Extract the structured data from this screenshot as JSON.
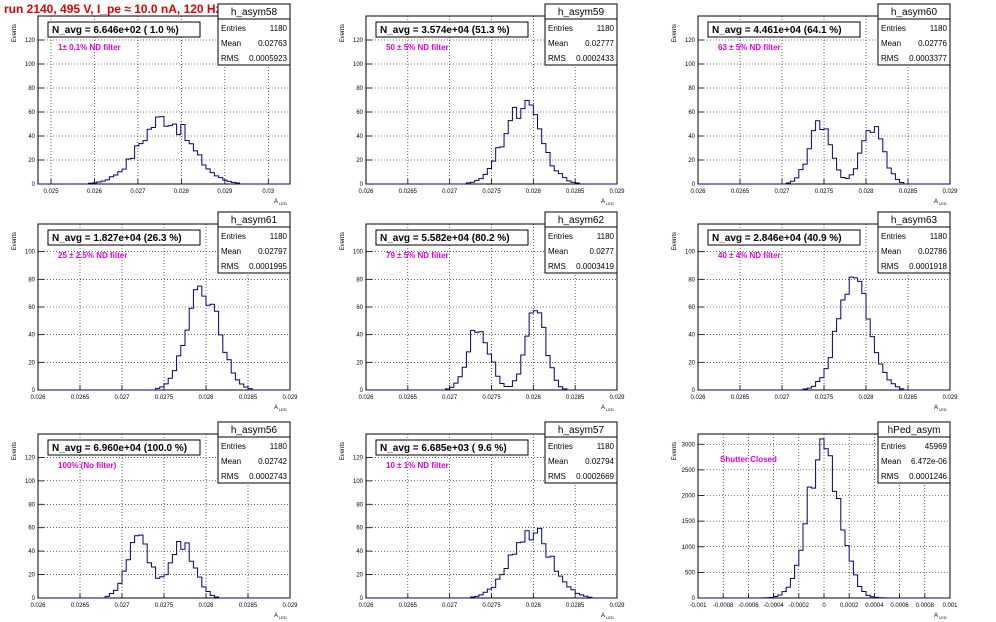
{
  "run_title": "run 2140,   495 V, I_pe ≈ 10.0 nA, 120 Hz",
  "colors": {
    "hist": "#000080",
    "annot": "#e000e0",
    "title": "#e00000",
    "grid": "#000000"
  },
  "chart_data": [
    {
      "type": "bar",
      "name": "h_asym58",
      "ylabel": "Events",
      "xlabel": "A",
      "xlabel_sub": "LED",
      "navg": "N_avg = 6.646e+02 ( 1.0 %)",
      "annotation": "1± 0.1% ND filter",
      "stats": {
        "Entries": "1180",
        "Mean": "0.02763",
        "RMS": "0.0005923"
      },
      "xlim": [
        0.0247,
        0.0305
      ],
      "ylim": [
        0,
        140
      ],
      "xticks": [
        "0.025",
        "0.026",
        "0.027",
        "0.028",
        "0.029",
        "0.03"
      ],
      "yticks": [
        "0",
        "20",
        "40",
        "60",
        "80",
        "100",
        "120"
      ],
      "peaks": [
        {
          "mu": 0.02763,
          "sigma": 0.00058,
          "amp": 55
        }
      ]
    },
    {
      "type": "bar",
      "name": "h_asym59",
      "ylabel": "Events",
      "xlabel": "A",
      "xlabel_sub": "LED",
      "navg": "N_avg = 3.574e+04 (51.3 %)",
      "annotation": "50 ± 5% ND filter",
      "stats": {
        "Entries": "1180",
        "Mean": "0.02777",
        "RMS": "0.0002433"
      },
      "xlim": [
        0.026,
        0.029
      ],
      "ylim": [
        0,
        140
      ],
      "xticks": [
        "0.026",
        "0.0265",
        "0.027",
        "0.0275",
        "0.028",
        "0.0285",
        "0.029"
      ],
      "yticks": [
        "0",
        "20",
        "40",
        "60",
        "80",
        "100",
        "120"
      ],
      "peaks": [
        {
          "mu": 0.02787,
          "sigma": 0.00022,
          "amp": 65
        }
      ]
    },
    {
      "type": "bar",
      "name": "h_asym60",
      "ylabel": "Events",
      "xlabel": "A",
      "xlabel_sub": "LED",
      "navg": "N_avg = 4.461e+04 (64.1 %)",
      "annotation": "63 ± 5% ND filter",
      "stats": {
        "Entries": "1180",
        "Mean": "0.02776",
        "RMS": "0.0003377"
      },
      "xlim": [
        0.026,
        0.029
      ],
      "ylim": [
        0,
        140
      ],
      "xticks": [
        "0.026",
        "0.0265",
        "0.027",
        "0.0275",
        "0.028",
        "0.0285",
        "0.029"
      ],
      "yticks": [
        "0",
        "20",
        "40",
        "60",
        "80",
        "100",
        "120"
      ],
      "peaks": [
        {
          "mu": 0.02745,
          "sigma": 0.00013,
          "amp": 48
        },
        {
          "mu": 0.02808,
          "sigma": 0.00013,
          "amp": 48
        }
      ]
    },
    {
      "type": "bar",
      "name": "h_asym61",
      "ylabel": "Events",
      "xlabel": "A",
      "xlabel_sub": "LED",
      "navg": "N_avg = 1.827e+04 (26.3 %)",
      "annotation": "25 ± 2.5% ND filter",
      "stats": {
        "Entries": "1180",
        "Mean": "0.02797",
        "RMS": "0.0001995"
      },
      "xlim": [
        0.026,
        0.029
      ],
      "ylim": [
        0,
        120
      ],
      "xticks": [
        "0.026",
        "0.0265",
        "0.027",
        "0.0275",
        "0.028",
        "0.0285",
        "0.029"
      ],
      "yticks": [
        "0",
        "20",
        "40",
        "60",
        "80",
        "100"
      ],
      "peaks": [
        {
          "mu": 0.02797,
          "sigma": 0.00019,
          "amp": 72
        }
      ]
    },
    {
      "type": "bar",
      "name": "h_asym62",
      "ylabel": "Events",
      "xlabel": "A",
      "xlabel_sub": "LED",
      "navg": "N_avg = 5.582e+04 (80.2 %)",
      "annotation": "79 ± 5% ND filter",
      "stats": {
        "Entries": "1180",
        "Mean": "0.0277",
        "RMS": "0.0003419"
      },
      "xlim": [
        0.026,
        0.029
      ],
      "ylim": [
        0,
        120
      ],
      "xticks": [
        "0.026",
        "0.0265",
        "0.027",
        "0.0275",
        "0.028",
        "0.0285",
        "0.029"
      ],
      "yticks": [
        "0",
        "20",
        "40",
        "60",
        "80",
        "100"
      ],
      "peaks": [
        {
          "mu": 0.02735,
          "sigma": 0.00013,
          "amp": 46
        },
        {
          "mu": 0.02803,
          "sigma": 0.00012,
          "amp": 54
        }
      ]
    },
    {
      "type": "bar",
      "name": "h_asym63",
      "ylabel": "Events",
      "xlabel": "A",
      "xlabel_sub": "LED",
      "navg": "N_avg = 2.846e+04 (40.9 %)",
      "annotation": "40 ± 4% ND filter",
      "stats": {
        "Entries": "1180",
        "Mean": "0.02786",
        "RMS": "0.0001918"
      },
      "xlim": [
        0.026,
        0.029
      ],
      "ylim": [
        0,
        120
      ],
      "xticks": [
        "0.026",
        "0.0265",
        "0.027",
        "0.0275",
        "0.028",
        "0.0285",
        "0.029"
      ],
      "yticks": [
        "0",
        "20",
        "40",
        "60",
        "80",
        "100"
      ],
      "peaks": [
        {
          "mu": 0.02786,
          "sigma": 0.00019,
          "amp": 80
        }
      ]
    },
    {
      "type": "bar",
      "name": "h_asym56",
      "ylabel": "Events",
      "xlabel": "A",
      "xlabel_sub": "LED",
      "navg": "N_avg = 6.960e+04 (100.0 %)",
      "annotation": "100% (No filter)",
      "stats": {
        "Entries": "1180",
        "Mean": "0.02742",
        "RMS": "0.0002743"
      },
      "xlim": [
        0.026,
        0.029
      ],
      "ylim": [
        0,
        140
      ],
      "xticks": [
        "0.026",
        "0.0265",
        "0.027",
        "0.0275",
        "0.028",
        "0.0285",
        "0.029"
      ],
      "yticks": [
        "0",
        "20",
        "40",
        "60",
        "80",
        "100",
        "120"
      ],
      "peaks": [
        {
          "mu": 0.0272,
          "sigma": 0.00014,
          "amp": 50
        },
        {
          "mu": 0.02773,
          "sigma": 0.00014,
          "amp": 46
        }
      ]
    },
    {
      "type": "bar",
      "name": "h_asym57",
      "ylabel": "Events",
      "xlabel": "A",
      "xlabel_sub": "LED",
      "navg": "N_avg = 6.685e+03 ( 9.6 %)",
      "annotation": "10 ± 1% ND filter",
      "stats": {
        "Entries": "1180",
        "Mean": "0.02794",
        "RMS": "0.0002669"
      },
      "xlim": [
        0.026,
        0.029
      ],
      "ylim": [
        0,
        140
      ],
      "xticks": [
        "0.026",
        "0.0265",
        "0.027",
        "0.0275",
        "0.028",
        "0.0285",
        "0.029"
      ],
      "yticks": [
        "0",
        "20",
        "40",
        "60",
        "80",
        "100",
        "120"
      ],
      "peaks": [
        {
          "mu": 0.02797,
          "sigma": 0.00024,
          "amp": 58
        }
      ]
    },
    {
      "type": "bar",
      "name": "hPed_asym",
      "ylabel": "Events",
      "xlabel": "A",
      "xlabel_sub": "LED",
      "navg": "",
      "annotation": "Shutter Closed",
      "stats": {
        "Entries": "45969",
        "Mean": "6.472e-06",
        "RMS": "0.0001246"
      },
      "xlim": [
        -0.001,
        0.001
      ],
      "ylim": [
        0,
        3200
      ],
      "xticks": [
        "-0.001",
        "-0.0008",
        "-0.0006",
        "-0.0004",
        "-0.0002",
        "0",
        "0.0002",
        "0.0004",
        "0.0006",
        "0.0008",
        "0.001"
      ],
      "yticks": [
        "0",
        "500",
        "1000",
        "1500",
        "2000",
        "2500",
        "3000"
      ],
      "peaks": [
        {
          "mu": 0.0,
          "sigma": 0.000125,
          "amp": 2950
        }
      ]
    }
  ]
}
